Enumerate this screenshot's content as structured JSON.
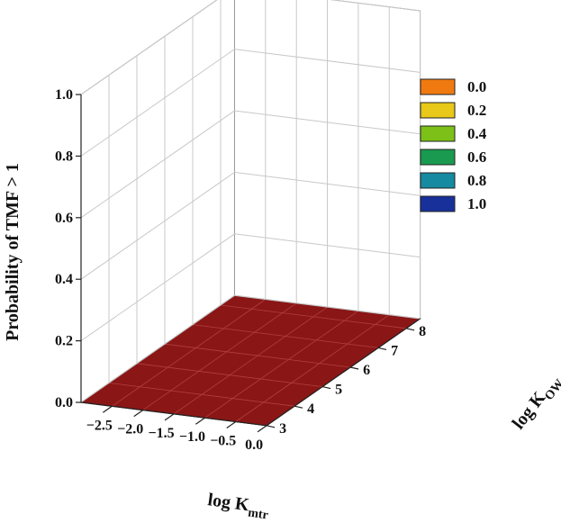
{
  "chart_data": {
    "type": "surface3d",
    "title": "",
    "zlabel": "Probability of TMF > 1",
    "xlabel": {
      "main": "log K",
      "sub": "mtr"
    },
    "ylabel": {
      "main": "log K",
      "sub": "OW"
    },
    "x_ticks": [
      "−2.5",
      "−2.0",
      "−1.5",
      "−1.0",
      "−0.5",
      "0.0"
    ],
    "x_tick_values": [
      -2.5,
      -2.0,
      -1.5,
      -1.0,
      -0.5,
      0.0
    ],
    "y_ticks": [
      "3",
      "4",
      "5",
      "6",
      "7",
      "8"
    ],
    "y_tick_values": [
      3,
      4,
      5,
      6,
      7,
      8
    ],
    "z_ticks": [
      "0.0",
      "0.2",
      "0.4",
      "0.6",
      "0.8",
      "1.0"
    ],
    "z_tick_values": [
      0.0,
      0.2,
      0.4,
      0.6,
      0.8,
      1.0
    ],
    "xlim": [
      -3.0,
      0.0
    ],
    "ylim": [
      3,
      8.5
    ],
    "zlim": [
      0,
      1
    ],
    "grid": true,
    "legend": {
      "position": "top-right",
      "items": [
        {
          "label": "0.0",
          "color": "#f07a10"
        },
        {
          "label": "0.2",
          "color": "#e8c818"
        },
        {
          "label": "0.4",
          "color": "#7cc018"
        },
        {
          "label": "0.6",
          "color": "#1a9a50"
        },
        {
          "label": "0.8",
          "color": "#168aa0"
        },
        {
          "label": "1.0",
          "color": "#18309a"
        }
      ]
    },
    "floor_color": "#8b1616",
    "surface": {
      "x": [
        -3.0,
        -2.5,
        -2.0,
        -1.5,
        -1.0,
        -0.5,
        0.0
      ],
      "y": [
        3,
        4,
        5,
        6,
        7,
        8,
        8.5
      ],
      "z": [
        [
          0.0,
          0.0,
          0.0,
          0.0,
          0.0,
          0.0,
          0.0
        ],
        [
          0.0,
          0.0,
          0.0,
          0.0,
          0.0,
          0.0,
          0.0
        ],
        [
          0.0,
          0.0,
          0.0,
          0.0,
          0.0,
          0.0,
          0.0
        ],
        [
          0.0,
          0.0,
          0.0,
          0.0,
          0.0,
          0.0,
          0.0
        ],
        [
          0.0,
          0.0,
          0.0,
          0.0,
          0.0,
          0.0,
          0.0
        ],
        [
          0.0,
          0.0,
          0.0,
          0.0,
          0.0,
          0.0,
          0.0
        ],
        [
          0.0,
          0.0,
          0.0,
          0.0,
          0.0,
          0.0,
          0.0
        ]
      ]
    }
  }
}
